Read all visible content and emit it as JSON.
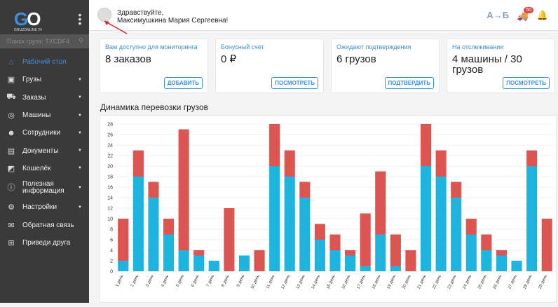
{
  "sidebar": {
    "logo": "GO",
    "logo_sub": "GRUZONLINE 24",
    "search_placeholder": "Поиск груза: TXCDF4",
    "items": [
      {
        "label": "Рабочий стол",
        "icon": "desk-icon",
        "active": true
      },
      {
        "label": "Грузы",
        "icon": "cargo-icon",
        "arrow": true
      },
      {
        "label": "Заказы",
        "icon": "truck-icon",
        "arrow": true
      },
      {
        "label": "Машины",
        "icon": "wheel-icon",
        "arrow": true
      },
      {
        "label": "Сотрудники",
        "icon": "users-icon",
        "arrow": true
      },
      {
        "label": "Документы",
        "icon": "document-icon",
        "arrow": true
      },
      {
        "label": "Кошелёк",
        "icon": "wallet-icon",
        "arrow": true
      },
      {
        "label": "Полезная информация",
        "icon": "info-icon",
        "arrow": true
      },
      {
        "label": "Настройки",
        "icon": "gear-icon",
        "arrow": true
      },
      {
        "label": "Обратная связь",
        "icon": "feedback-icon"
      },
      {
        "label": "Приведи друга",
        "icon": "gift-icon"
      }
    ]
  },
  "header": {
    "greeting": "Здравствуйте,",
    "name": "Максимушкина Мария Сергеевна!",
    "route": "А→Б",
    "truck_badge": "50"
  },
  "cards": [
    {
      "title": "Вам доступно для мониторинга",
      "value": "8 заказов",
      "button": "ДОБАВИТЬ"
    },
    {
      "title": "Бонусный счет",
      "value": "0 ₽",
      "button": "ПОСМОТРЕТЬ"
    },
    {
      "title": "Ожидают подтверждения",
      "value": "6 грузов",
      "button": "ПОДТВЕРДИТЬ"
    },
    {
      "title": "На отслеживании",
      "value": "4 машины / 30 грузов",
      "button": "ПОСМОТРЕТЬ"
    }
  ],
  "chart_title": "Динамика перевозки грузов",
  "colors": {
    "blue": "#1eb4e0",
    "red": "#dc5550",
    "accent": "#3a8fe0"
  },
  "chart_data": {
    "type": "bar",
    "stacked": true,
    "ylim": [
      0,
      28
    ],
    "yticks": [
      0,
      2,
      4,
      6,
      8,
      10,
      12,
      14,
      16,
      18,
      20,
      22,
      24,
      26,
      28
    ],
    "grid": true,
    "categories": [
      "1 день",
      "2 день",
      "3 день",
      "4 день",
      "5 день",
      "6 день",
      "7 день",
      "8 день",
      "9 день",
      "10 день",
      "11 день",
      "12 день",
      "13 день",
      "14 день",
      "15 день",
      "16 день",
      "17 день",
      "18 день",
      "19 день",
      "20 день",
      "21 день",
      "22 день",
      "23 день",
      "24 день",
      "25 день",
      "26 день",
      "27 день",
      "28 день",
      "29 день"
    ],
    "series": [
      {
        "color": "#1eb4e0",
        "values": [
          2,
          18,
          14,
          7,
          4,
          3,
          2,
          0,
          3,
          0,
          20,
          18,
          14,
          6,
          4,
          3,
          1,
          7,
          1,
          0,
          20,
          18,
          14,
          7,
          4,
          3,
          2,
          20,
          0
        ]
      },
      {
        "color": "#dc5550",
        "values": [
          8,
          5,
          3,
          3,
          23,
          1,
          0,
          12,
          0,
          4,
          8,
          5,
          3,
          3,
          3,
          1,
          10,
          12,
          6,
          4,
          8,
          5,
          3,
          3,
          3,
          1,
          0,
          3,
          10
        ]
      }
    ]
  }
}
